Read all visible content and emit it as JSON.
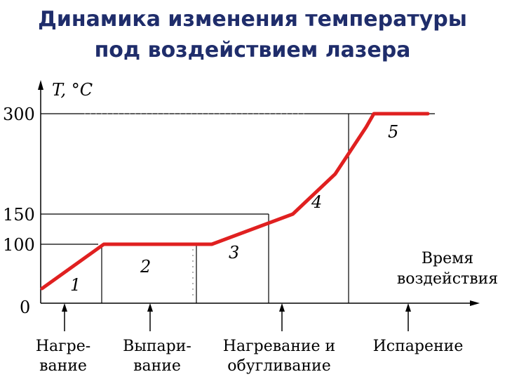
{
  "title_line1": "Динамика изменения температуры",
  "title_line2": "под воздействием лазера",
  "chart_data": {
    "type": "line",
    "ylabel": "T, °C",
    "xlabel_line1": "Время",
    "xlabel_line2": "воздействия",
    "y_ticks": [
      "300",
      "150",
      "100",
      "0"
    ],
    "ylim": [
      0,
      300
    ],
    "series": [
      {
        "x": [
          0,
          0.16,
          0.44,
          0.65,
          0.76,
          0.84,
          0.86,
          1.0
        ],
        "y": [
          25,
          100,
          100,
          150,
          210,
          280,
          300,
          300
        ]
      }
    ],
    "zones": [
      {
        "number": "1",
        "label_line1": "Нагре-",
        "label_line2": "вание"
      },
      {
        "number": "2",
        "label_line1": "Выпари-",
        "label_line2": "вание"
      },
      {
        "number": "3",
        "label_line1": "Нагревание и",
        "label_line2": "обугливание"
      },
      {
        "number": "4",
        "label_line1": "",
        "label_line2": ""
      },
      {
        "number": "5",
        "label_line1": "Испарение",
        "label_line2": ""
      }
    ],
    "colors": {
      "line": "#e02020",
      "axis": "#000000",
      "title": "#1f2d6b"
    }
  }
}
